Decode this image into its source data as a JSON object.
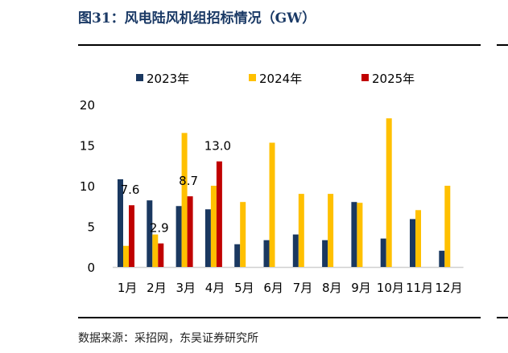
{
  "title": "图31：风电陆风机组招标情况（GW）",
  "source": "数据来源：采招网，东吴证券研究所",
  "chart_data": {
    "type": "bar",
    "title": "风电陆风机组招标情况（GW）",
    "categories": [
      "1月",
      "2月",
      "3月",
      "4月",
      "5月",
      "6月",
      "7月",
      "8月",
      "9月",
      "10月",
      "11月",
      "12月"
    ],
    "series": [
      {
        "name": "2023年",
        "color": "#1a3860",
        "values": [
          10.8,
          8.2,
          7.5,
          7.1,
          2.8,
          3.3,
          4.0,
          3.3,
          8.0,
          3.5,
          5.9,
          2.0
        ]
      },
      {
        "name": "2024年",
        "color": "#ffc000",
        "values": [
          2.6,
          4.0,
          16.5,
          10.0,
          8.0,
          15.3,
          9.0,
          9.0,
          7.9,
          18.3,
          7.0,
          10.0
        ]
      },
      {
        "name": "2025年",
        "color": "#c00000",
        "values": [
          7.6,
          2.9,
          8.7,
          13.0,
          null,
          null,
          null,
          null,
          null,
          null,
          null,
          null
        ]
      }
    ],
    "data_labels": {
      "series": "2025年",
      "labels": [
        "7.6",
        "2.9",
        "8.7",
        "13.0"
      ]
    },
    "yticks": [
      "0",
      "5",
      "10",
      "15",
      "20"
    ],
    "ylim": [
      0,
      20
    ],
    "xlabel": "",
    "ylabel": "",
    "legend": "top"
  }
}
